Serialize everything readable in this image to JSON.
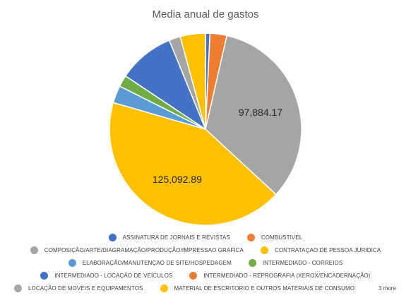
{
  "chart_data": {
    "type": "pie",
    "title": "Media anual de gastos",
    "slices": [
      {
        "name": "ASSINATURA DE JORNAIS E REVISTAS",
        "value": 2200,
        "color": "#4472C4"
      },
      {
        "name": "COMBUSTIVEL",
        "value": 8300,
        "color": "#ED7D31"
      },
      {
        "name": "COMPOSIÇÃO/ARTE/DIAGRAMAÇÃO/PRODUÇÃO/IMPRESSAO GRAFICA",
        "value": 97884.17,
        "color": "#A5A5A5",
        "label": "97,884.17"
      },
      {
        "name": "CONTRATAÇAO DE PESSOA JURIDICA",
        "value": 125092.89,
        "color": "#FFC000",
        "label": "125,092.89"
      },
      {
        "name": "ELABORAÇÃO/MANUTENÇAO DE SITE/HOSPEDAGEM",
        "value": 8600,
        "color": "#5B9BD5"
      },
      {
        "name": "INTERMEDIADO - CORREIOS",
        "value": 5700,
        "color": "#70AD47"
      },
      {
        "name": "INTERMEDIADO - LOCAÇÃO DE VEÍCULOS",
        "value": 27900,
        "color": "#4472C4"
      },
      {
        "name": "INTERMEDIADO - REPROGRAFIA (XEROX/ENCADERNAÇÃO)",
        "value": 0,
        "color": "#ED7D31"
      },
      {
        "name": "LOCAÇÃO DE MOVEIS E EQUIPAMENTOS",
        "value": 5600,
        "color": "#A5A5A5"
      },
      {
        "name": "MATERIAL DE ESCRITORIO E OUTROS MATERIAIS DE CONSUMO",
        "value": 12500,
        "color": "#FFC000"
      }
    ],
    "legend_position": "bottom",
    "legend_more": "3 more"
  }
}
